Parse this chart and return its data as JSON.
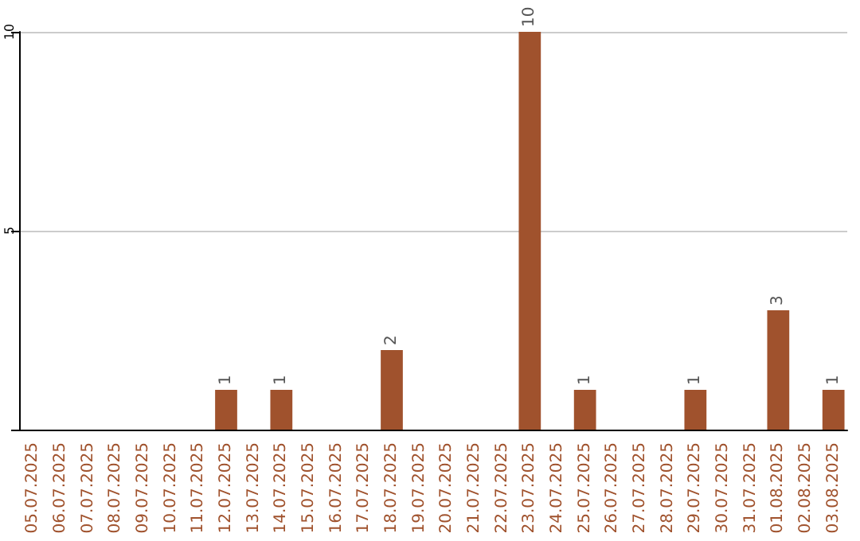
{
  "chart_data": {
    "type": "bar",
    "categories": [
      "05.07.2025",
      "06.07.2025",
      "07.07.2025",
      "08.07.2025",
      "09.07.2025",
      "10.07.2025",
      "11.07.2025",
      "12.07.2025",
      "13.07.2025",
      "14.07.2025",
      "15.07.2025",
      "16.07.2025",
      "17.07.2025",
      "18.07.2025",
      "19.07.2025",
      "20.07.2025",
      "21.07.2025",
      "22.07.2025",
      "23.07.2025",
      "24.07.2025",
      "25.07.2025",
      "26.07.2025",
      "27.07.2025",
      "28.07.2025",
      "29.07.2025",
      "30.07.2025",
      "31.07.2025",
      "01.08.2025",
      "02.08.2025",
      "03.08.2025"
    ],
    "values": [
      0,
      0,
      0,
      0,
      0,
      0,
      0,
      1,
      0,
      1,
      0,
      0,
      0,
      2,
      0,
      0,
      0,
      0,
      10,
      0,
      1,
      0,
      0,
      0,
      1,
      0,
      0,
      3,
      0,
      1
    ],
    "value_labels": [
      null,
      null,
      null,
      null,
      null,
      null,
      null,
      "1",
      null,
      "1",
      null,
      null,
      null,
      "2",
      null,
      null,
      null,
      null,
      "10",
      null,
      "1",
      null,
      null,
      null,
      "1",
      null,
      null,
      "3",
      null,
      "1"
    ],
    "color": "#a0522d",
    "ylim": [
      0,
      10
    ],
    "yticks": [
      {
        "value": 0,
        "label": null
      },
      5,
      10
    ],
    "grid": "y"
  }
}
